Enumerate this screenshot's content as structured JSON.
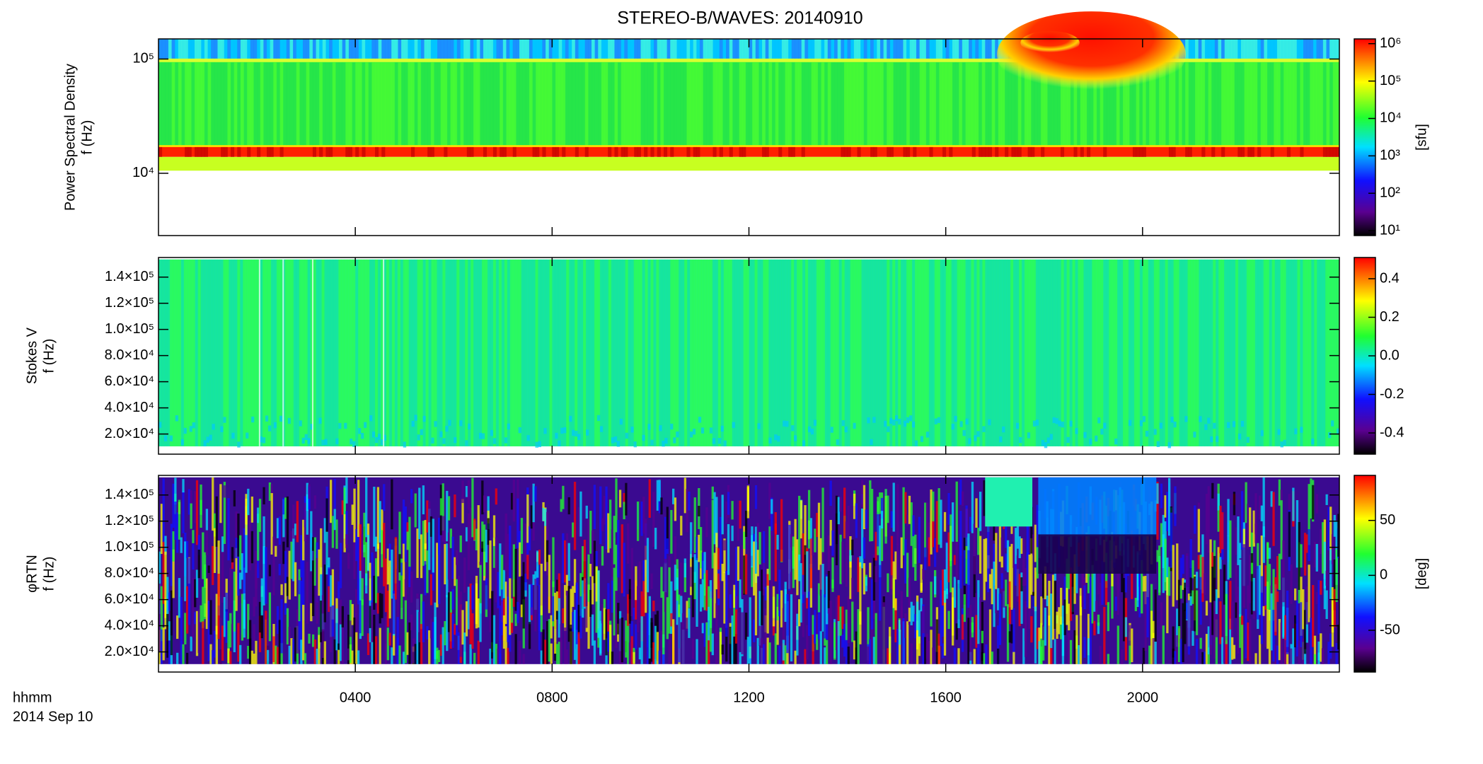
{
  "chart_data": {
    "type": "spectrogram",
    "title": "STEREO-B/WAVES: 20140910",
    "x_label": "hhmm",
    "date": "2014 Sep 10",
    "xlim": [
      0,
      24
    ],
    "xticks": [
      {
        "value": 4,
        "label": "0400"
      },
      {
        "value": 8,
        "label": "0800"
      },
      {
        "value": 12,
        "label": "1200"
      },
      {
        "value": 16,
        "label": "1600"
      },
      {
        "value": 20,
        "label": "2000"
      }
    ],
    "panels": [
      {
        "ylabel": [
          "Power Spectral Density",
          "f (Hz)"
        ],
        "yscale": "log",
        "ylim": [
          2850,
          150000
        ],
        "yticks": [
          {
            "value": 10000,
            "label": "10⁴"
          },
          {
            "value": 100000,
            "label": "10⁵"
          }
        ],
        "colorbar": {
          "scale": "log",
          "lim": [
            7.4,
            1340000
          ],
          "ticks": [
            {
              "value": 10,
              "label": "10¹"
            },
            {
              "value": 100,
              "label": "10²"
            },
            {
              "value": 1000,
              "label": "10³"
            },
            {
              "value": 10000,
              "label": "10⁴"
            },
            {
              "value": 100000,
              "label": "10⁵"
            },
            {
              "value": 1000000,
              "label": "10⁶"
            }
          ],
          "label": "[sfu]"
        }
      },
      {
        "ylabel": [
          "Stokes V",
          "f (Hz)"
        ],
        "yscale": "linear",
        "ylim": [
          4600,
          155000
        ],
        "yticks": [
          {
            "value": 20000,
            "label": "2.0×10⁴"
          },
          {
            "value": 40000,
            "label": "4.0×10⁴"
          },
          {
            "value": 60000,
            "label": "6.0×10⁴"
          },
          {
            "value": 80000,
            "label": "8.0×10⁴"
          },
          {
            "value": 100000,
            "label": "1.0×10⁵"
          },
          {
            "value": 120000,
            "label": "1.2×10⁵"
          },
          {
            "value": 140000,
            "label": "1.4×10⁵"
          }
        ],
        "colorbar": {
          "scale": "linear",
          "lim": [
            -0.51,
            0.51
          ],
          "ticks": [
            -0.4,
            -0.2,
            {
              "value": 0,
              "label": "0.0"
            },
            0.2,
            0.4
          ]
        }
      },
      {
        "ylabel": [
          "φRTN",
          "f (Hz)"
        ],
        "yscale": "linear",
        "ylim": [
          4600,
          155000
        ],
        "yticks": [
          {
            "value": 20000,
            "label": "2.0×10⁴"
          },
          {
            "value": 40000,
            "label": "4.0×10⁴"
          },
          {
            "value": 60000,
            "label": "6.0×10⁴"
          },
          {
            "value": 80000,
            "label": "8.0×10⁴"
          },
          {
            "value": 100000,
            "label": "1.0×10⁵"
          },
          {
            "value": 120000,
            "label": "1.2×10⁵"
          },
          {
            "value": 140000,
            "label": "1.4×10⁵"
          }
        ],
        "colorbar": {
          "scale": "linear",
          "lim": [
            -88,
            91
          ],
          "ticks": [
            -50,
            0,
            50
          ],
          "label": "[deg]"
        }
      }
    ]
  }
}
